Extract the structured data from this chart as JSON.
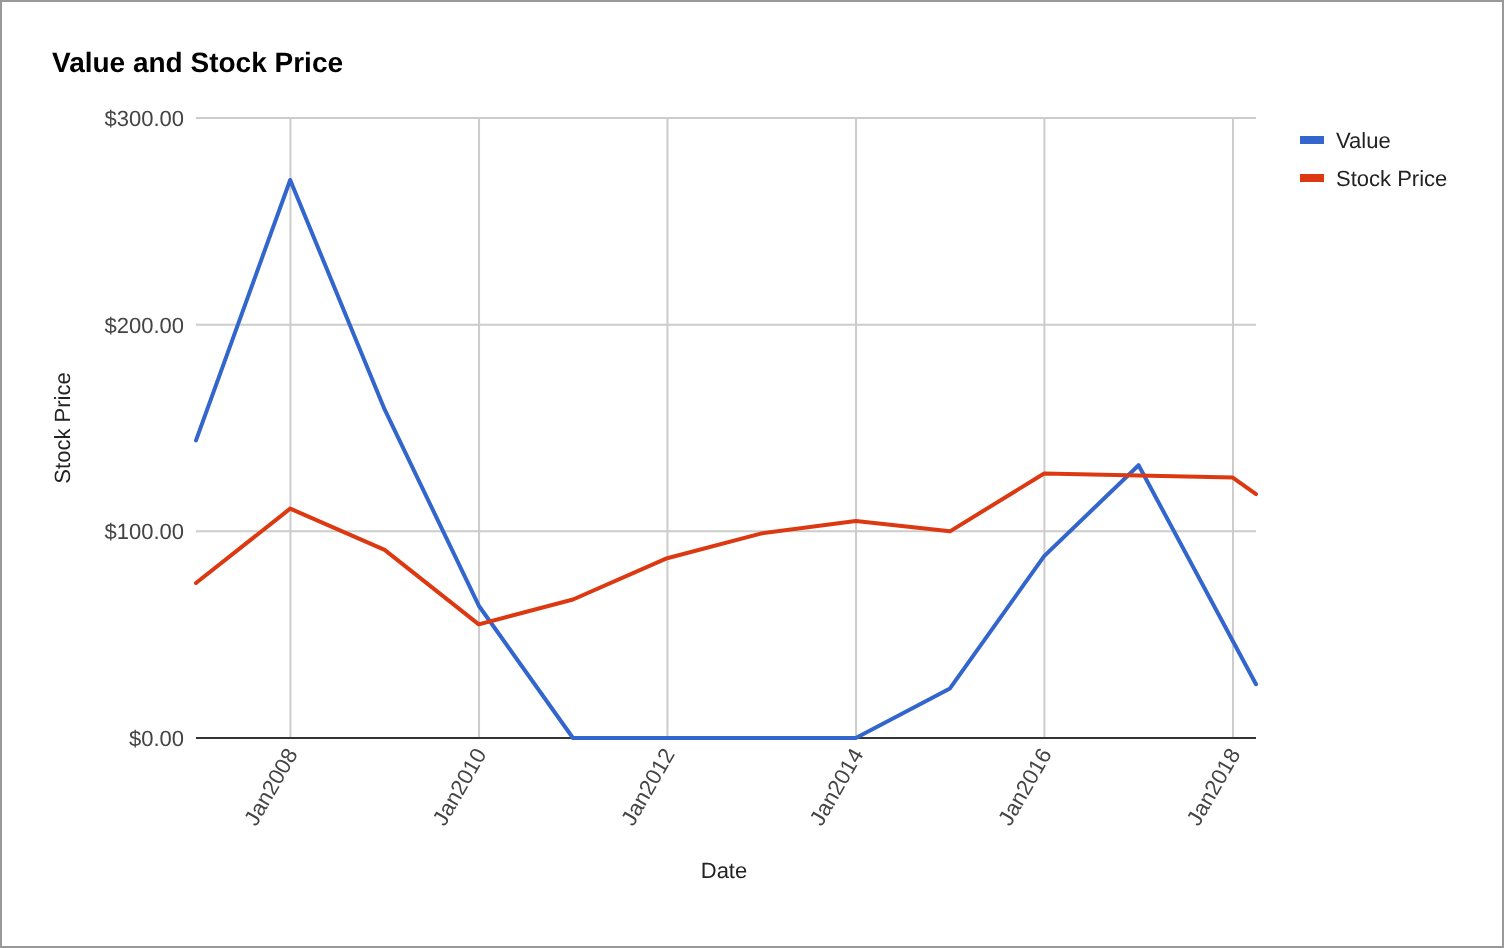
{
  "chart_data": {
    "type": "line",
    "title": "Value and Stock Price",
    "xlabel": "Date",
    "ylabel": "Stock Price",
    "x": [
      "2006-12-31",
      "2007-12-31",
      "2008-12-31",
      "2009-12-31",
      "2010-12-31",
      "2011-12-31",
      "2012-12-31",
      "2013-12-31",
      "2014-12-31",
      "2015-12-31",
      "2016-12-31",
      "2017-12-31",
      "2018-03-31"
    ],
    "series": [
      {
        "name": "Value",
        "color": "#3366cc",
        "x": [
          "2006-12-31",
          "2007-12-31",
          "2008-12-31",
          "2009-12-31",
          "2010-12-31",
          "2011-12-31",
          "2012-12-31",
          "2013-12-31",
          "2014-12-31",
          "2015-12-31",
          "2016-12-31",
          "2018-03-31"
        ],
        "values": [
          144,
          270,
          159,
          64,
          0,
          0,
          0,
          0,
          24,
          88,
          132,
          26
        ]
      },
      {
        "name": "Stock Price",
        "color": "#dc3912",
        "values": [
          75,
          111,
          91,
          55,
          67,
          87,
          99,
          105,
          100,
          128,
          127,
          126,
          118
        ]
      }
    ],
    "xlim": [
      "2006-12-31",
      "2018-03-31"
    ],
    "xticks": [
      {
        "value": "2008-01-01",
        "label": "Jan2008"
      },
      {
        "value": "2010-01-01",
        "label": "Jan2010"
      },
      {
        "value": "2012-01-01",
        "label": "Jan2012"
      },
      {
        "value": "2014-01-01",
        "label": "Jan2014"
      },
      {
        "value": "2016-01-01",
        "label": "Jan2016"
      },
      {
        "value": "2018-01-01",
        "label": "Jan2018"
      }
    ],
    "ylim": [
      0,
      300
    ],
    "yticks": [
      {
        "value": 0,
        "label": "$0.00"
      },
      {
        "value": 100,
        "label": "$100.00"
      },
      {
        "value": 200,
        "label": "$200.00"
      },
      {
        "value": 300,
        "label": "$300.00"
      }
    ],
    "grid": true,
    "legend": "top right",
    "line_style": "solid",
    "marker": "none"
  }
}
